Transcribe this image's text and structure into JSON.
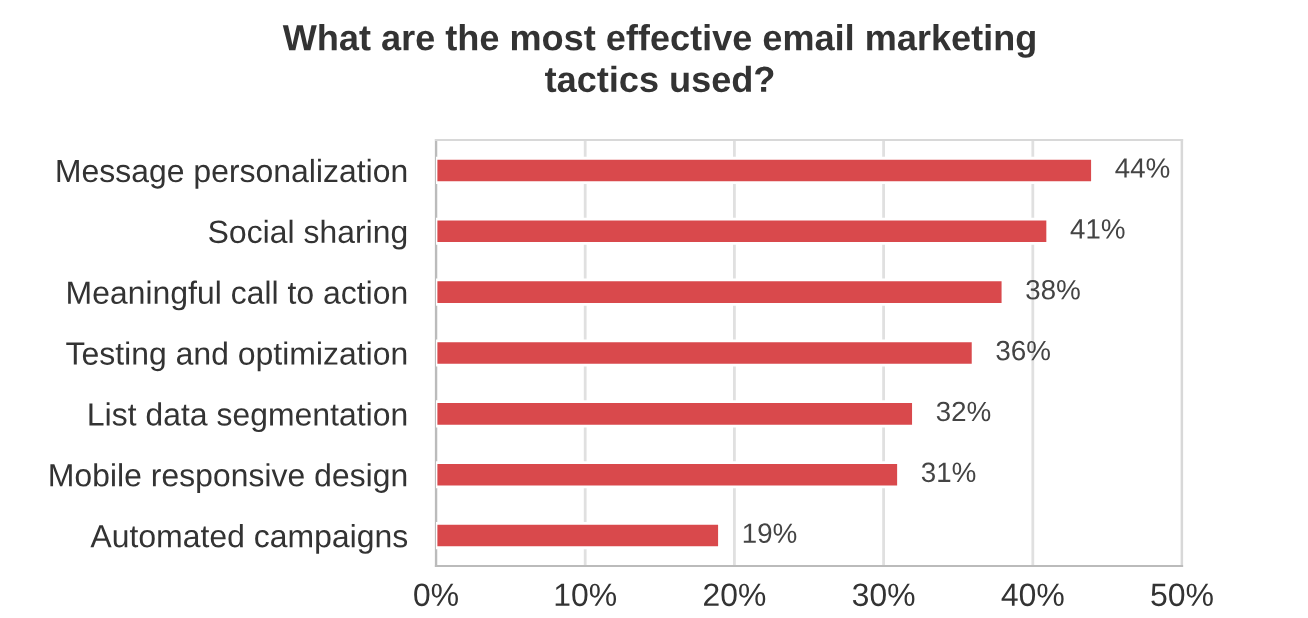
{
  "chart_data": {
    "type": "bar",
    "orientation": "horizontal",
    "title": "What are the most effective email marketing\ntactics used?",
    "categories": [
      "Message personalization",
      "Social sharing",
      "Meaningful call to action",
      "Testing and optimization",
      "List data segmentation",
      "Mobile responsive design",
      "Automated campaigns"
    ],
    "values": [
      44,
      41,
      38,
      36,
      32,
      31,
      19
    ],
    "value_labels": [
      "44%",
      "41%",
      "38%",
      "36%",
      "32%",
      "31%",
      "19%"
    ],
    "color": "#d9494c",
    "xlim": [
      0,
      50
    ],
    "xticks": [
      {
        "value": 0,
        "label": "0%"
      },
      {
        "value": 10,
        "label": "10%"
      },
      {
        "value": 20,
        "label": "20%"
      },
      {
        "value": 30,
        "label": "30%"
      },
      {
        "value": 40,
        "label": "40%"
      },
      {
        "value": 50,
        "label": "50%"
      }
    ],
    "grid": "x",
    "legend": false
  }
}
